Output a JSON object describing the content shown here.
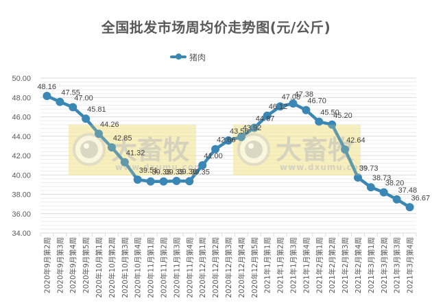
{
  "chart_data": {
    "type": "line",
    "title": "全国批发市场周均价走势图(元/公斤)",
    "xlabel": "",
    "ylabel": "",
    "ylim": [
      34,
      50
    ],
    "ytick_step": 2,
    "ytick_format_decimals": 2,
    "grid": true,
    "legend_position": "top",
    "categories": [
      "2020年9月第2周",
      "2020年9月第3周",
      "2020年9月第4周",
      "2020年9月第5周",
      "2020年10月第1周",
      "2020年10月第2周",
      "2020年10月第3周",
      "2020年10月第4周",
      "2020年11月第1周",
      "2020年11月第2周",
      "2020年11月第3周",
      "2020年11月第4周",
      "2020年12月第1周",
      "2020年12月第2周",
      "2020年12月第3周",
      "2020年12月第4周",
      "2020年12月第5周",
      "2021年1月第1周",
      "2021年1月第2周",
      "2021年1月第3周",
      "2021年1月第4周",
      "2021年2月第1周",
      "2021年2月第2周",
      "2021年2月第3周",
      "2021年2月第4周",
      "2021年3月第1周",
      "2021年3月第2周",
      "2021年3月第3周",
      "2021年3月第4周"
    ],
    "series": [
      {
        "name": "猪肉",
        "color": "#3a86b5",
        "values": [
          48.16,
          47.55,
          47.0,
          45.81,
          44.26,
          42.85,
          41.32,
          39.51,
          39.33,
          39.33,
          39.38,
          39.35,
          41.0,
          42.66,
          43.56,
          43.92,
          44.87,
          46.12,
          47.08,
          47.38,
          46.7,
          45.5,
          45.2,
          42.64,
          39.73,
          38.73,
          38.2,
          37.48,
          36.67
        ]
      }
    ]
  },
  "legend": {
    "label": "猪肉"
  },
  "watermark": {
    "brand": "大畜牧",
    "url": "www.dxumu.com"
  }
}
